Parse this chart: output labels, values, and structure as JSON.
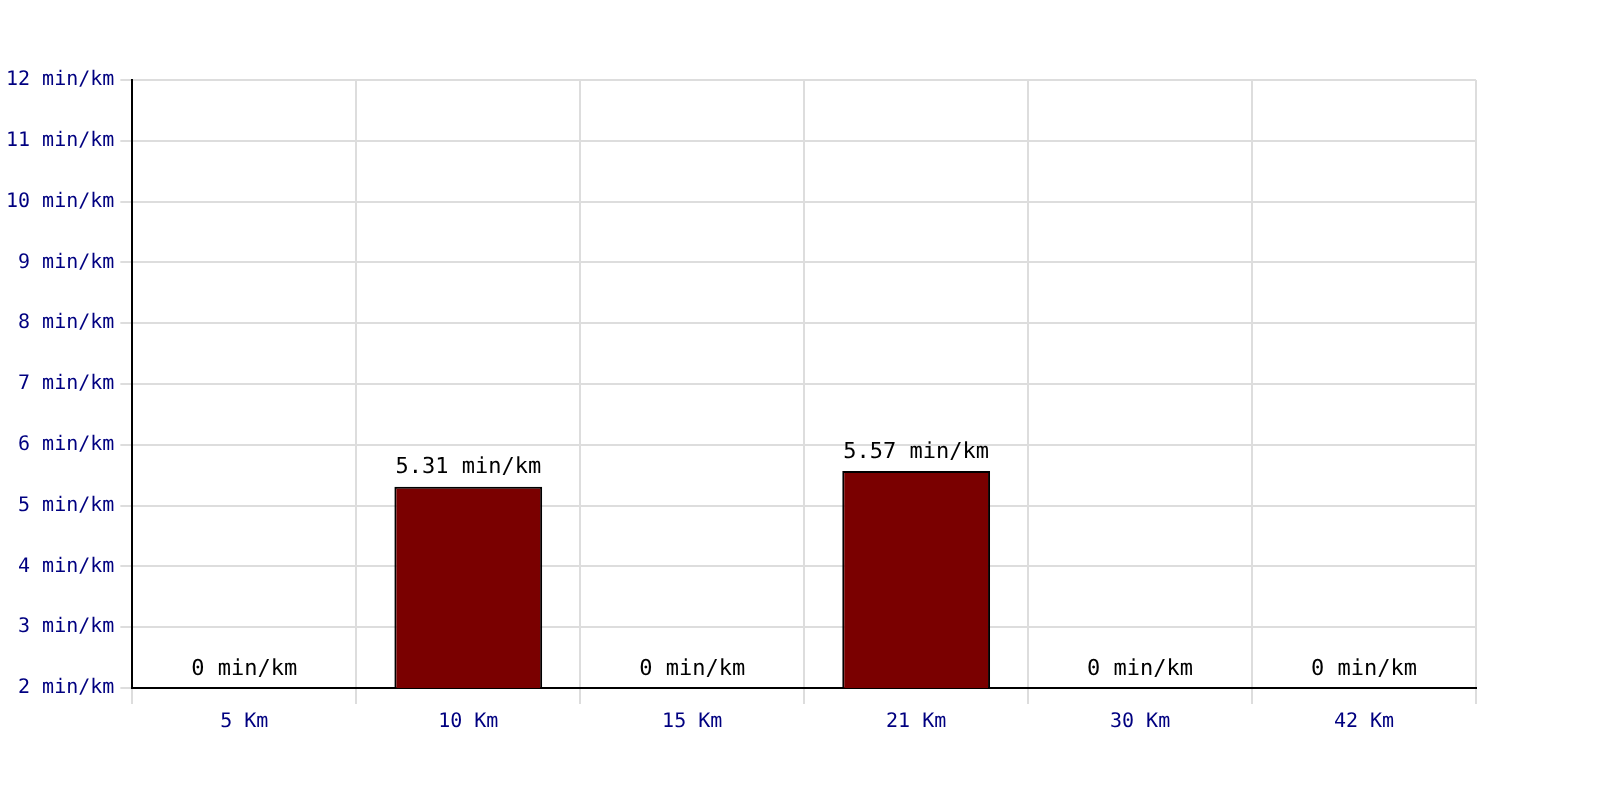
{
  "chart_data": {
    "type": "bar",
    "categories": [
      "5 Km",
      "10 Km",
      "15 Km",
      "21 Km",
      "30 Km",
      "42 Km"
    ],
    "values": [
      null,
      5.31,
      null,
      5.57,
      null,
      null
    ],
    "value_labels": [
      "0 min/km",
      "5.31 min/km",
      "0 min/km",
      "5.57 min/km",
      "0 min/km",
      "0 min/km"
    ],
    "color": "#7a0000",
    "ylim": [
      2,
      12
    ],
    "yticks": [
      {
        "value": 2,
        "label": "2 min/km"
      },
      {
        "value": 3,
        "label": "3 min/km"
      },
      {
        "value": 4,
        "label": "4 min/km"
      },
      {
        "value": 5,
        "label": "5 min/km"
      },
      {
        "value": 6,
        "label": "6 min/km"
      },
      {
        "value": 7,
        "label": "7 min/km"
      },
      {
        "value": 8,
        "label": "8 min/km"
      },
      {
        "value": 9,
        "label": "9 min/km"
      },
      {
        "value": 10,
        "label": "10 min/km"
      },
      {
        "value": 11,
        "label": "11 min/km"
      },
      {
        "value": 12,
        "label": "12 min/km"
      }
    ],
    "grid": true,
    "legend": false
  }
}
